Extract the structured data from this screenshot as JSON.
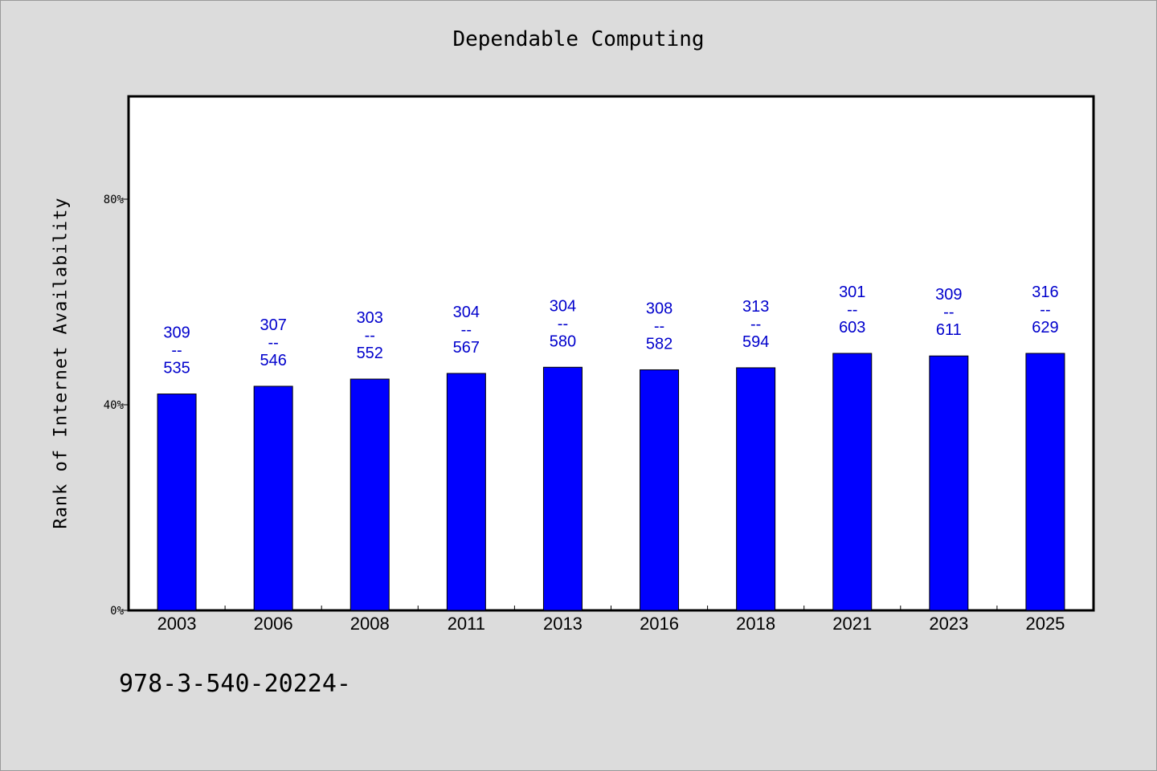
{
  "chart_data": {
    "type": "bar",
    "title": "Dependable Computing",
    "xlabel": "",
    "ylabel": "Rank of Internet Availability",
    "categories": [
      "2003",
      "2006",
      "2008",
      "2011",
      "2013",
      "2016",
      "2018",
      "2021",
      "2023",
      "2025"
    ],
    "values": [
      42.1,
      43.6,
      45.0,
      46.1,
      47.3,
      46.8,
      47.2,
      50.0,
      49.5,
      50.0
    ],
    "data_labels": [
      [
        "309",
        "--",
        "535"
      ],
      [
        "307",
        "--",
        "546"
      ],
      [
        "303",
        "--",
        "552"
      ],
      [
        "304",
        "--",
        "567"
      ],
      [
        "304",
        "--",
        "580"
      ],
      [
        "308",
        "--",
        "582"
      ],
      [
        "313",
        "--",
        "594"
      ],
      [
        "301",
        "--",
        "603"
      ],
      [
        "309",
        "--",
        "611"
      ],
      [
        "316",
        "--",
        "629"
      ]
    ],
    "ylim": [
      0,
      100
    ],
    "yticks": [
      0,
      40,
      80
    ],
    "ytick_labels": [
      "0%",
      "40%",
      "80%"
    ],
    "grid": false,
    "legend": "none",
    "colors": {
      "bar": "#0000ff",
      "bar_edge": "#000000",
      "label": "#0000cc",
      "background": "#dcdcdc",
      "plot_background": "#ffffff"
    }
  },
  "footnote": "978-3-540-20224-"
}
